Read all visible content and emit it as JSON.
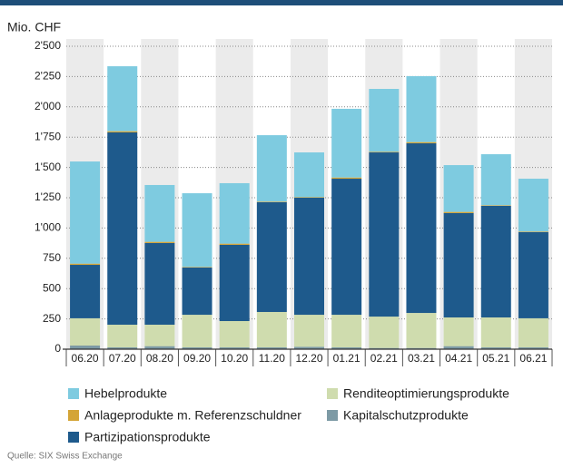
{
  "chart_data": {
    "type": "stacked_bar",
    "title": "Mio. CHF",
    "source": "Quelle: SIX Swiss Exchange",
    "categories": [
      "06.20",
      "07.20",
      "08.20",
      "09.20",
      "10.20",
      "11.20",
      "12.20",
      "01.21",
      "02.21",
      "03.21",
      "04.21",
      "05.21",
      "06.21"
    ],
    "series": [
      {
        "name": "Kapitalschutzprodukte",
        "color": "#7d9aa5",
        "values": [
          30,
          15,
          25,
          15,
          15,
          15,
          20,
          15,
          10,
          10,
          25,
          15,
          15
        ]
      },
      {
        "name": "Renditeoptimierungsprodukte",
        "color": "#cfdcae",
        "values": [
          225,
          187,
          177,
          269,
          217,
          292,
          264,
          269,
          259,
          289,
          237,
          247,
          240
        ]
      },
      {
        "name": "Partizipationsprodukte",
        "color": "#1e5a8c",
        "values": [
          441,
          1587,
          674,
          390,
          629,
          906,
          966,
          1123,
          1355,
          1400,
          861,
          921,
          711
        ]
      },
      {
        "name": "Anlageprodukte m. Referenzschuldner",
        "color": "#d4a537",
        "values": [
          10,
          10,
          10,
          5,
          10,
          5,
          5,
          10,
          5,
          10,
          10,
          5,
          5
        ]
      },
      {
        "name": "Hebelprodukte",
        "color": "#7ecbe0",
        "values": [
          843,
          536,
          469,
          608,
          499,
          548,
          369,
          567,
          519,
          544,
          386,
          421,
          436
        ]
      }
    ],
    "ylim": [
      0,
      2500
    ],
    "yticks": [
      0,
      250,
      500,
      750,
      {
        "value": 1000,
        "label": "1'000"
      },
      {
        "value": 1250,
        "label": "1'250"
      },
      {
        "value": 1500,
        "label": "1'500"
      },
      {
        "value": 1750,
        "label": "1'750"
      },
      {
        "value": 2000,
        "label": "2'000"
      },
      {
        "value": 2250,
        "label": "2'250"
      },
      {
        "value": 2500,
        "label": "2'500"
      }
    ],
    "grid": true
  }
}
